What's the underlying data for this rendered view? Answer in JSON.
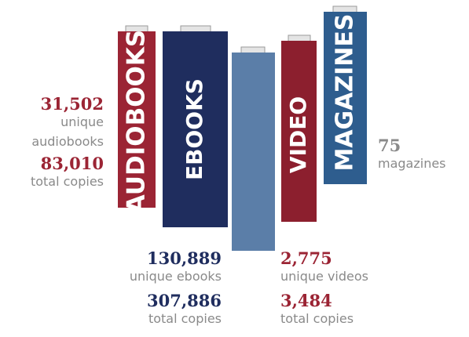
{
  "books": [
    {
      "label": "AUDIOBOOKS"
    },
    {
      "label": "EBOOKS"
    },
    {
      "label": "VIDEO"
    },
    {
      "label": "MAGAZINES"
    }
  ],
  "stats": {
    "audiobooks": {
      "unique": "31,502",
      "unique_label": "unique audiobooks",
      "total": "83,010",
      "total_label": "total copies"
    },
    "magazines": {
      "unique": "75",
      "unique_label": "magazines"
    },
    "ebooks": {
      "unique": "130,889",
      "unique_label": "unique ebooks",
      "total": "307,886",
      "total_label": "total copies"
    },
    "videos": {
      "unique": "2,775",
      "unique_label": "unique videos",
      "total": "3,484",
      "total_label": "total copies"
    }
  }
}
